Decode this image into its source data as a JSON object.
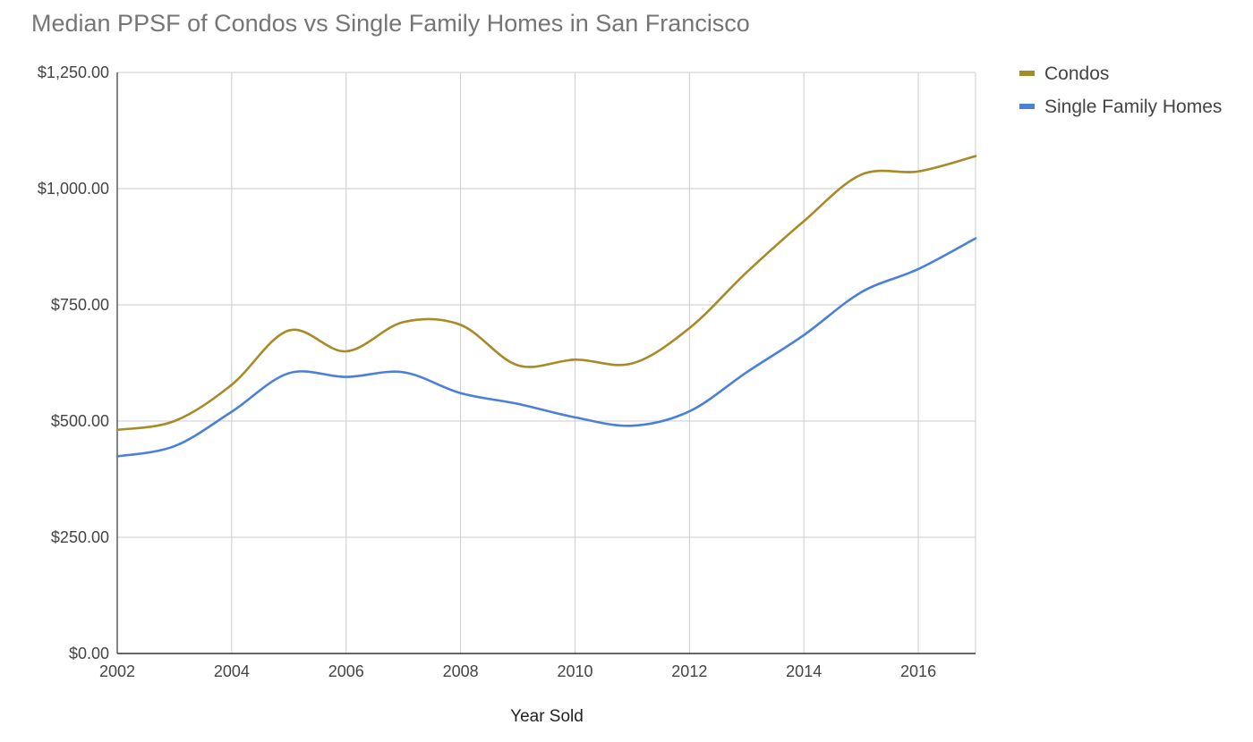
{
  "chart_data": {
    "type": "line",
    "title": "Median PPSF of Condos vs Single Family Homes in San Francisco",
    "xlabel": "Year Sold",
    "ylabel": "",
    "x": [
      2002,
      2003,
      2004,
      2005,
      2006,
      2007,
      2008,
      2009,
      2010,
      2011,
      2012,
      2013,
      2014,
      2015,
      2016,
      2017
    ],
    "xlim": [
      2002,
      2017
    ],
    "ylim": [
      0,
      1250
    ],
    "x_ticks": [
      "2002",
      "2004",
      "2006",
      "2008",
      "2010",
      "2012",
      "2014",
      "2016"
    ],
    "y_ticks": [
      "$0.00",
      "$250.00",
      "$500.00",
      "$750.00",
      "$1,000.00",
      "$1,250.00"
    ],
    "grid": true,
    "legend_position": "right",
    "series": [
      {
        "name": "Condos",
        "color": "#a88a27",
        "values": [
          481,
          500,
          578,
          695,
          650,
          713,
          707,
          620,
          632,
          624,
          700,
          820,
          930,
          1030,
          1037,
          1070
        ]
      },
      {
        "name": "Single Family Homes",
        "color": "#4a80d8",
        "values": [
          424,
          446,
          520,
          603,
          595,
          605,
          560,
          537,
          508,
          490,
          521,
          605,
          685,
          777,
          827,
          893
        ]
      }
    ]
  }
}
